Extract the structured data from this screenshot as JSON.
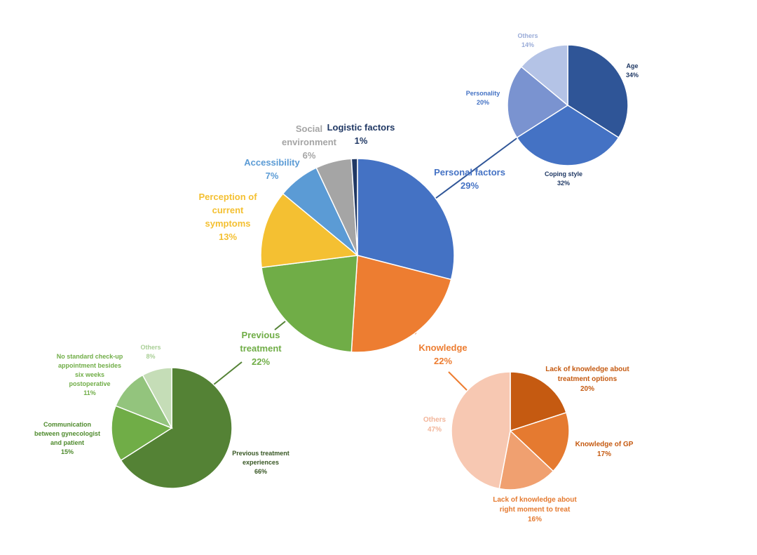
{
  "chart_data": [
    {
      "type": "pie",
      "series": [
        {
          "values": [
            29,
            22,
            22,
            13,
            7,
            6,
            1
          ]
        }
      ],
      "categories": [
        "Personal factors",
        "Knowledge",
        "Previous treatment",
        "Perception of current symptoms",
        "Accessibility",
        "Social environment",
        "Logistic factors"
      ],
      "label_lines": [
        [
          "Personal factors"
        ],
        [
          "Knowledge"
        ],
        [
          "Previous",
          "treatment"
        ],
        [
          "Perception of",
          "current",
          "symptoms"
        ],
        [
          "Accessibility"
        ],
        [
          "Social",
          "environment"
        ],
        [
          "Logistic factors"
        ]
      ],
      "value_labels": [
        "29%",
        "22%",
        "22%",
        "13%",
        "7%",
        "6%",
        "1%"
      ],
      "colors": [
        "#4472C4",
        "#ED7D31",
        "#70AD47",
        "#F4C032",
        "#5B9BD5",
        "#A5A5A5",
        "#203864"
      ]
    },
    {
      "type": "pie",
      "series": [
        {
          "values": [
            34,
            32,
            20,
            14
          ]
        }
      ],
      "categories": [
        "Age",
        "Coping style",
        "Personality",
        "Others"
      ],
      "label_lines": [
        [
          "Age"
        ],
        [
          "Coping style"
        ],
        [
          "Personality"
        ],
        [
          "Others"
        ]
      ],
      "value_labels": [
        "34%",
        "32%",
        "20%",
        "14%"
      ],
      "colors": [
        "#2F5597",
        "#4472C4",
        "#7A93D0",
        "#B4C3E6"
      ],
      "label_colors": [
        "#1F3864",
        "#1F3864",
        "#4472C4",
        "#9AACD8"
      ]
    },
    {
      "type": "pie",
      "series": [
        {
          "values": [
            20,
            17,
            16,
            47
          ]
        }
      ],
      "categories": [
        "Lack of knowledge about treatment options",
        "Knowledge of GP",
        "Lack of knowledge about right moment to treat",
        "Others"
      ],
      "label_lines": [
        [
          "Lack of knowledge about",
          "treatment options"
        ],
        [
          "Knowledge of GP"
        ],
        [
          "Lack of knowledge about",
          "right moment to treat"
        ],
        [
          "Others"
        ]
      ],
      "value_labels": [
        "20%",
        "17%",
        "16%",
        "47%"
      ],
      "colors": [
        "#C55A11",
        "#E57A30",
        "#F0A070",
        "#F7C8B2"
      ],
      "label_colors": [
        "#C55A11",
        "#C55A11",
        "#E57A30",
        "#F2B59A"
      ]
    },
    {
      "type": "pie",
      "series": [
        {
          "values": [
            66,
            15,
            11,
            8
          ]
        }
      ],
      "categories": [
        "Previous treatment experiences",
        "Communication between gynecologist and patient",
        "No standard check-up appointment besides six weeks postoperative",
        "Others"
      ],
      "label_lines": [
        [
          "Previous treatment",
          "experiences"
        ],
        [
          "Communication",
          "between gynecologist",
          "and patient"
        ],
        [
          "No standard check-up",
          "appointment besides",
          "six weeks",
          "postoperative"
        ],
        [
          "Others"
        ]
      ],
      "value_labels": [
        "66%",
        "15%",
        "11%",
        "8%"
      ],
      "colors": [
        "#548235",
        "#70AD47",
        "#93C47D",
        "#C5DDB7"
      ],
      "label_colors": [
        "#375623",
        "#4E8A2C",
        "#70AD47",
        "#A9CF96"
      ]
    }
  ]
}
